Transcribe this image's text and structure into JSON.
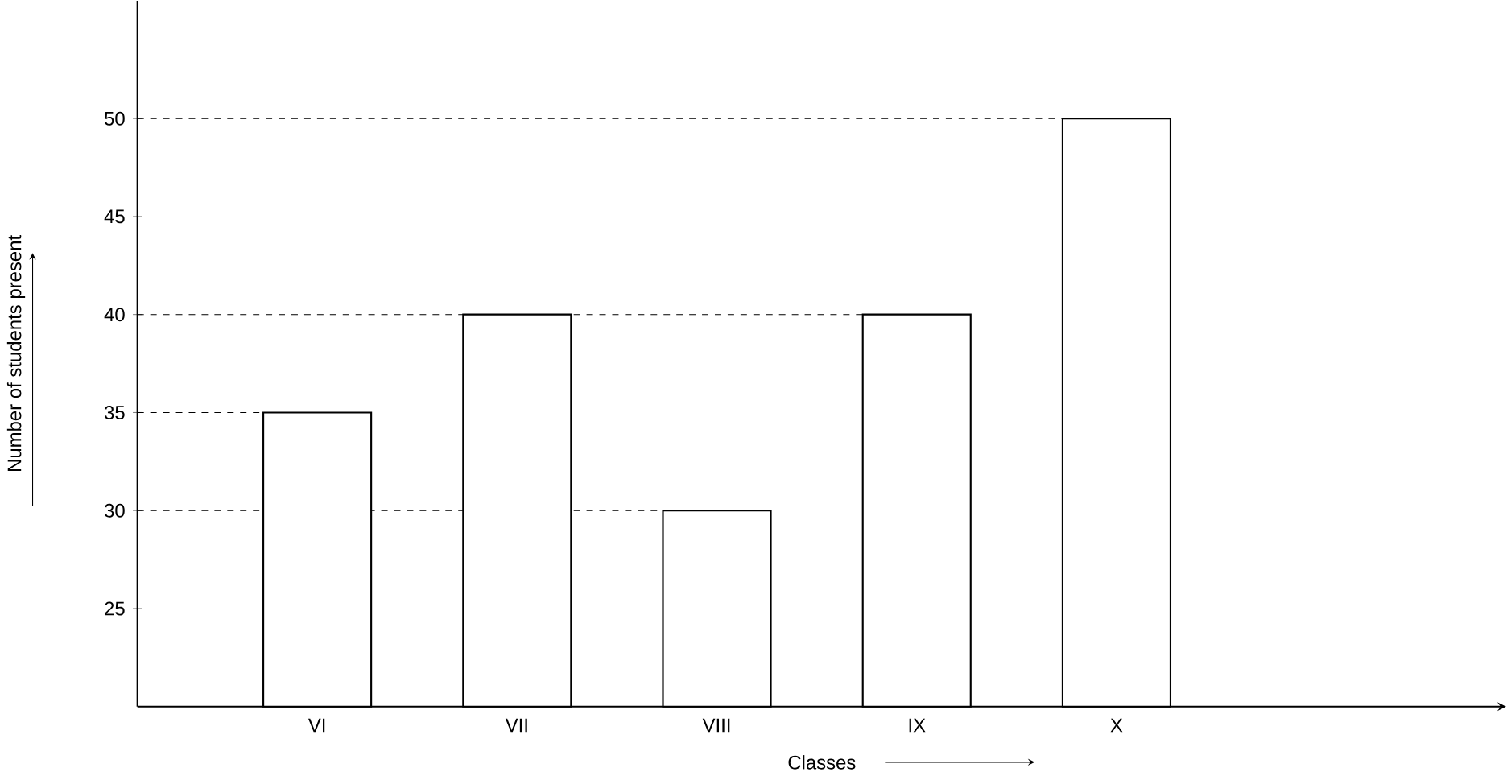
{
  "chart_data": {
    "type": "bar",
    "xlabel": "Classes",
    "ylabel": "Number of students present",
    "categories": [
      "VI",
      "VII",
      "VIII",
      "IX",
      "X"
    ],
    "values": [
      35,
      40,
      30,
      40,
      50
    ],
    "color": "#000000",
    "ylim": [
      20,
      56
    ],
    "yticks": [
      25,
      30,
      35,
      40,
      45,
      50
    ],
    "grid": false,
    "ref_lines": [
      {
        "axis": "y",
        "value": 50,
        "line_style": "dashed"
      },
      {
        "axis": "y",
        "value": 40,
        "line_style": "dashed"
      },
      {
        "axis": "y",
        "value": 35,
        "line_style": "dashed"
      },
      {
        "axis": "y",
        "value": 30,
        "line_style": "dashed"
      }
    ]
  }
}
